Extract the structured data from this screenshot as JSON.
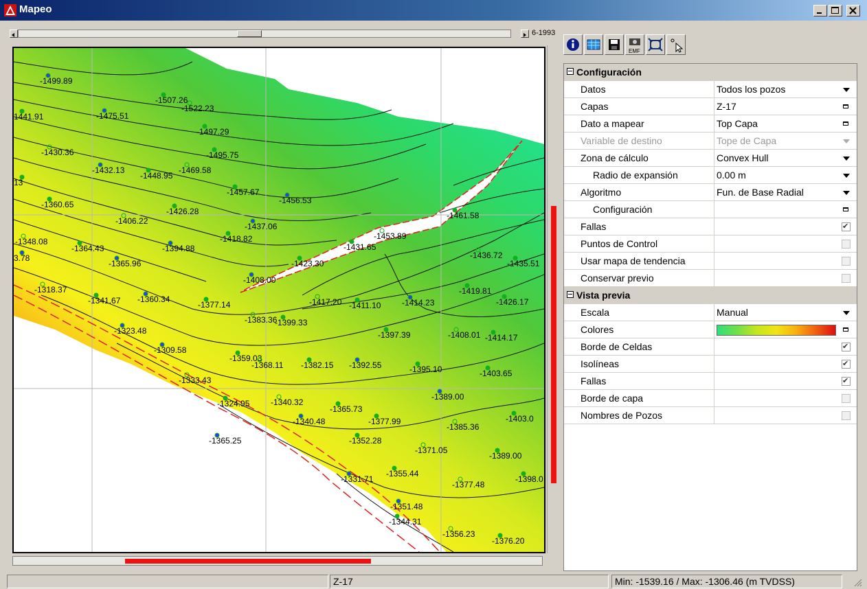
{
  "window": {
    "title": "Mapeo"
  },
  "map": {
    "year_label": "6-1993",
    "wells": [
      {
        "label": "-1499.89"
      },
      {
        "label": "-1507.26"
      },
      {
        "label": "-1522.23"
      },
      {
        "label": "1441.91"
      },
      {
        "label": "-1475.51"
      },
      {
        "label": "-1497.29"
      },
      {
        "label": "-1430.36"
      },
      {
        "label": "-1495.75"
      },
      {
        "label": "-1432.13"
      },
      {
        "label": "-1448.95"
      },
      {
        "label": "-1469.58"
      },
      {
        "label": "-1457.67"
      },
      {
        "label": "-1456.53"
      },
      {
        "label": "-1360.65"
      },
      {
        "label": "-1406.22"
      },
      {
        "label": "-1426.28"
      },
      {
        "label": "-1437.06"
      },
      {
        "label": "-1461.58"
      },
      {
        "label": "-1348.08"
      },
      {
        "label": "-1364.43"
      },
      {
        "label": "-1394.88"
      },
      {
        "label": "-1418.82"
      },
      {
        "label": "-1453.89"
      },
      {
        "label": "-1431.65"
      },
      {
        "label": "-1365.96"
      },
      {
        "label": "-1423.30"
      },
      {
        "label": "-1436.72"
      },
      {
        "label": "-1435.51"
      },
      {
        "label": "-1408.00"
      },
      {
        "label": "-1419.81"
      },
      {
        "label": "-1318.37"
      },
      {
        "label": "-1341.67"
      },
      {
        "label": "-1360.34"
      },
      {
        "label": "-1377.14"
      },
      {
        "label": "-1417.20"
      },
      {
        "label": "-1411.10"
      },
      {
        "label": "-1414.23"
      },
      {
        "label": "-1426.17"
      },
      {
        "label": "-1383.36"
      },
      {
        "label": "-1399.33"
      },
      {
        "label": "-1323.48"
      },
      {
        "label": "-1397.39"
      },
      {
        "label": "-1408.01"
      },
      {
        "label": "-1414.17"
      },
      {
        "label": "-1309.58"
      },
      {
        "label": "-1359.03"
      },
      {
        "label": "-1368.11"
      },
      {
        "label": "-1382.15"
      },
      {
        "label": "-1392.55"
      },
      {
        "label": "-1395.10"
      },
      {
        "label": "-1333.43"
      },
      {
        "label": "-1403.65"
      },
      {
        "label": "-1389.00"
      },
      {
        "label": "-1324.95"
      },
      {
        "label": "-1340.32"
      },
      {
        "label": "-1365.73"
      },
      {
        "label": "-1340.48"
      },
      {
        "label": "-1377.99"
      },
      {
        "label": "-1385.36"
      },
      {
        "label": "-1403.0"
      },
      {
        "label": "-1365.25"
      },
      {
        "label": "-1352.28"
      },
      {
        "label": "-1371.05"
      },
      {
        "label": "-1389.00"
      },
      {
        "label": "-1331.71"
      },
      {
        "label": "-1355.44"
      },
      {
        "label": "-1377.48"
      },
      {
        "label": "-1398.0"
      },
      {
        "label": "-1351.48"
      },
      {
        "label": "-1344.31"
      },
      {
        "label": "-1356.23"
      },
      {
        "label": "-1376.20"
      },
      {
        "label": "3.78"
      },
      {
        "label": "13"
      }
    ]
  },
  "toolbar": {
    "buttons": [
      {
        "icon": "info-icon"
      },
      {
        "icon": "grid-icon"
      },
      {
        "icon": "save-icon"
      },
      {
        "icon": "camera-emf-icon",
        "caption": "EMF"
      },
      {
        "icon": "zoom-extent-icon"
      },
      {
        "icon": "pointer-icon"
      }
    ]
  },
  "properties": {
    "sections": [
      {
        "title": "Configuración",
        "rows": [
          {
            "label": "Datos",
            "value": "Todos los pozos",
            "control": "dropdown"
          },
          {
            "label": "Capas",
            "value": "Z-17",
            "control": "button"
          },
          {
            "label": "Dato a mapear",
            "value": "Top Capa",
            "control": "button"
          },
          {
            "label": "Variable de destino",
            "value": "Tope de Capa",
            "control": "dropdown",
            "disabled": true
          },
          {
            "label": "Zona de cálculo",
            "value": "Convex Hull",
            "control": "dropdown"
          },
          {
            "label": "Radio de expansión",
            "value": "0.00 m",
            "control": "dropdown",
            "indent": 1
          },
          {
            "label": "Algoritmo",
            "value": "Fun. de Base Radial",
            "control": "dropdown"
          },
          {
            "label": "Configuración",
            "value": "",
            "control": "button",
            "indent": 1
          },
          {
            "label": "Fallas",
            "value": "",
            "control": "checkbox",
            "checked": true
          },
          {
            "label": "Puntos de Control",
            "value": "",
            "control": "checkbox",
            "checked": false
          },
          {
            "label": "Usar mapa de tendencia",
            "value": "",
            "control": "checkbox",
            "checked": false
          },
          {
            "label": "Conservar previo",
            "value": "",
            "control": "checkbox",
            "checked": false
          }
        ]
      },
      {
        "title": "Vista previa",
        "rows": [
          {
            "label": "Escala",
            "value": "Manual",
            "control": "dropdown"
          },
          {
            "label": "Colores",
            "value": "",
            "control": "colorbar"
          },
          {
            "label": "Borde de Celdas",
            "value": "",
            "control": "checkbox",
            "checked": true
          },
          {
            "label": "Isolíneas",
            "value": "",
            "control": "checkbox",
            "checked": true
          },
          {
            "label": "Fallas",
            "value": "",
            "control": "checkbox",
            "checked": true
          },
          {
            "label": "Borde de capa",
            "value": "",
            "control": "checkbox",
            "checked": false
          },
          {
            "label": "Nombres de Pozos",
            "value": "",
            "control": "checkbox",
            "checked": false
          }
        ]
      }
    ]
  },
  "status": {
    "left": "",
    "layer": "Z-17",
    "range": "Min: -1539.16 / Max: -1306.46 (m TVDSS)"
  }
}
